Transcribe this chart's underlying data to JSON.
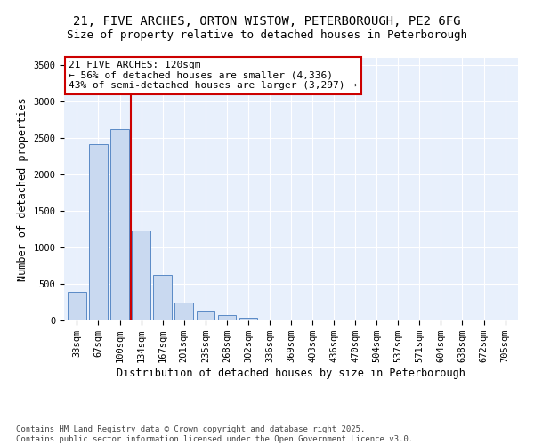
{
  "title_line1": "21, FIVE ARCHES, ORTON WISTOW, PETERBOROUGH, PE2 6FG",
  "title_line2": "Size of property relative to detached houses in Peterborough",
  "xlabel": "Distribution of detached houses by size in Peterborough",
  "ylabel": "Number of detached properties",
  "categories": [
    "33sqm",
    "67sqm",
    "100sqm",
    "134sqm",
    "167sqm",
    "201sqm",
    "235sqm",
    "268sqm",
    "302sqm",
    "336sqm",
    "369sqm",
    "403sqm",
    "436sqm",
    "470sqm",
    "504sqm",
    "537sqm",
    "571sqm",
    "604sqm",
    "638sqm",
    "672sqm",
    "705sqm"
  ],
  "values": [
    390,
    2420,
    2620,
    1230,
    620,
    250,
    130,
    70,
    40,
    0,
    0,
    0,
    0,
    0,
    0,
    0,
    0,
    0,
    0,
    0,
    0
  ],
  "bar_color": "#c9d9f0",
  "bar_edge_color": "#5a8ac6",
  "background_color": "#e8f0fc",
  "grid_color": "#ffffff",
  "annotation_text": "21 FIVE ARCHES: 120sqm\n← 56% of detached houses are smaller (4,336)\n43% of semi-detached houses are larger (3,297) →",
  "vline_color": "#cc0000",
  "annotation_box_color": "#cc0000",
  "ylim": [
    0,
    3600
  ],
  "yticks": [
    0,
    500,
    1000,
    1500,
    2000,
    2500,
    3000,
    3500
  ],
  "footer_text": "Contains HM Land Registry data © Crown copyright and database right 2025.\nContains public sector information licensed under the Open Government Licence v3.0.",
  "title_fontsize": 10,
  "subtitle_fontsize": 9,
  "axis_label_fontsize": 8.5,
  "tick_fontsize": 7.5,
  "annotation_fontsize": 8,
  "footer_fontsize": 6.5
}
